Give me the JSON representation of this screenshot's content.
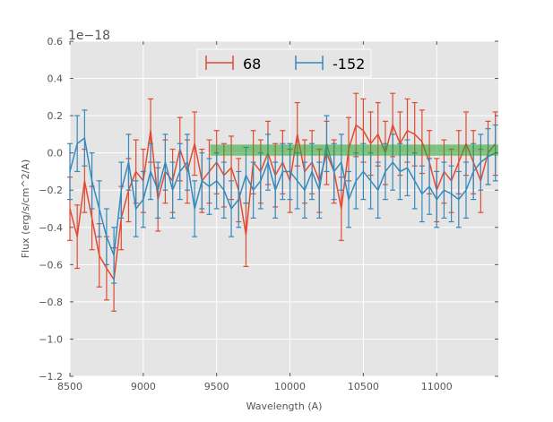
{
  "chart_data": {
    "type": "line",
    "title": "",
    "xlabel": "Wavelength (A)",
    "ylabel": "Flux (erg/s/cm^2/A)",
    "offset_text": "1e−18",
    "xlim": [
      8500,
      11420
    ],
    "ylim": [
      -1.2,
      0.6
    ],
    "xticks": [
      8500,
      9000,
      9500,
      10000,
      10500,
      11000
    ],
    "yticks": [
      -1.2,
      -1.0,
      -0.8,
      -0.6,
      -0.4,
      -0.2,
      0.0,
      0.2,
      0.4,
      0.6
    ],
    "ytick_labels": [
      "−1.2",
      "−1.0",
      "−0.8",
      "−0.6",
      "−0.4",
      "−0.2",
      "0.0",
      "0.2",
      "0.4",
      "0.6"
    ],
    "grid": true,
    "legend": {
      "position": "top-center",
      "entries": [
        "68",
        "-152"
      ]
    },
    "band": {
      "x": [
        9457,
        11420
      ],
      "y": [
        -0.015,
        0.045
      ],
      "color": "#2ca02c"
    },
    "x": [
      8500,
      8550,
      8600,
      8650,
      8700,
      8750,
      8800,
      8850,
      8900,
      8950,
      9000,
      9050,
      9100,
      9150,
      9200,
      9250,
      9300,
      9350,
      9400,
      9450,
      9500,
      9550,
      9600,
      9650,
      9700,
      9750,
      9800,
      9850,
      9900,
      9950,
      10000,
      10050,
      10100,
      10150,
      10200,
      10250,
      10300,
      10350,
      10400,
      10450,
      10500,
      10550,
      10600,
      10650,
      10700,
      10750,
      10800,
      10850,
      10900,
      10950,
      11000,
      11050,
      11100,
      11150,
      11200,
      11250,
      11300,
      11350,
      11400
    ],
    "series": [
      {
        "name": "68",
        "color": "#e24a33",
        "yerr": 0.17,
        "values": [
          -0.3,
          -0.45,
          -0.15,
          -0.35,
          -0.55,
          -0.62,
          -0.68,
          -0.35,
          -0.2,
          -0.1,
          -0.15,
          0.12,
          -0.25,
          -0.1,
          -0.15,
          0.02,
          -0.1,
          0.05,
          -0.15,
          -0.1,
          -0.05,
          -0.12,
          -0.08,
          -0.2,
          -0.44,
          -0.05,
          -0.1,
          0.0,
          -0.12,
          -0.05,
          -0.15,
          0.1,
          -0.1,
          -0.05,
          -0.15,
          0.0,
          -0.1,
          -0.3,
          0.02,
          0.15,
          0.12,
          0.05,
          0.1,
          0.0,
          0.15,
          0.05,
          0.12,
          0.1,
          0.06,
          -0.05,
          -0.2,
          -0.1,
          -0.15,
          -0.05,
          0.05,
          -0.05,
          -0.15,
          0.0,
          0.05
        ]
      },
      {
        "name": "-152",
        "color": "#348abd",
        "yerr": 0.15,
        "values": [
          -0.1,
          0.05,
          0.08,
          -0.15,
          -0.3,
          -0.45,
          -0.55,
          -0.2,
          -0.05,
          -0.3,
          -0.25,
          -0.1,
          -0.2,
          -0.05,
          -0.2,
          -0.1,
          -0.05,
          -0.3,
          -0.15,
          -0.18,
          -0.15,
          -0.2,
          -0.3,
          -0.25,
          -0.12,
          -0.2,
          -0.15,
          -0.05,
          -0.2,
          -0.1,
          -0.1,
          -0.15,
          -0.2,
          -0.1,
          -0.2,
          0.05,
          -0.1,
          -0.05,
          -0.25,
          -0.15,
          -0.1,
          -0.15,
          -0.2,
          -0.1,
          -0.05,
          -0.1,
          -0.08,
          -0.15,
          -0.22,
          -0.18,
          -0.25,
          -0.2,
          -0.22,
          -0.25,
          -0.2,
          -0.1,
          -0.05,
          -0.02,
          0.0
        ]
      }
    ]
  }
}
